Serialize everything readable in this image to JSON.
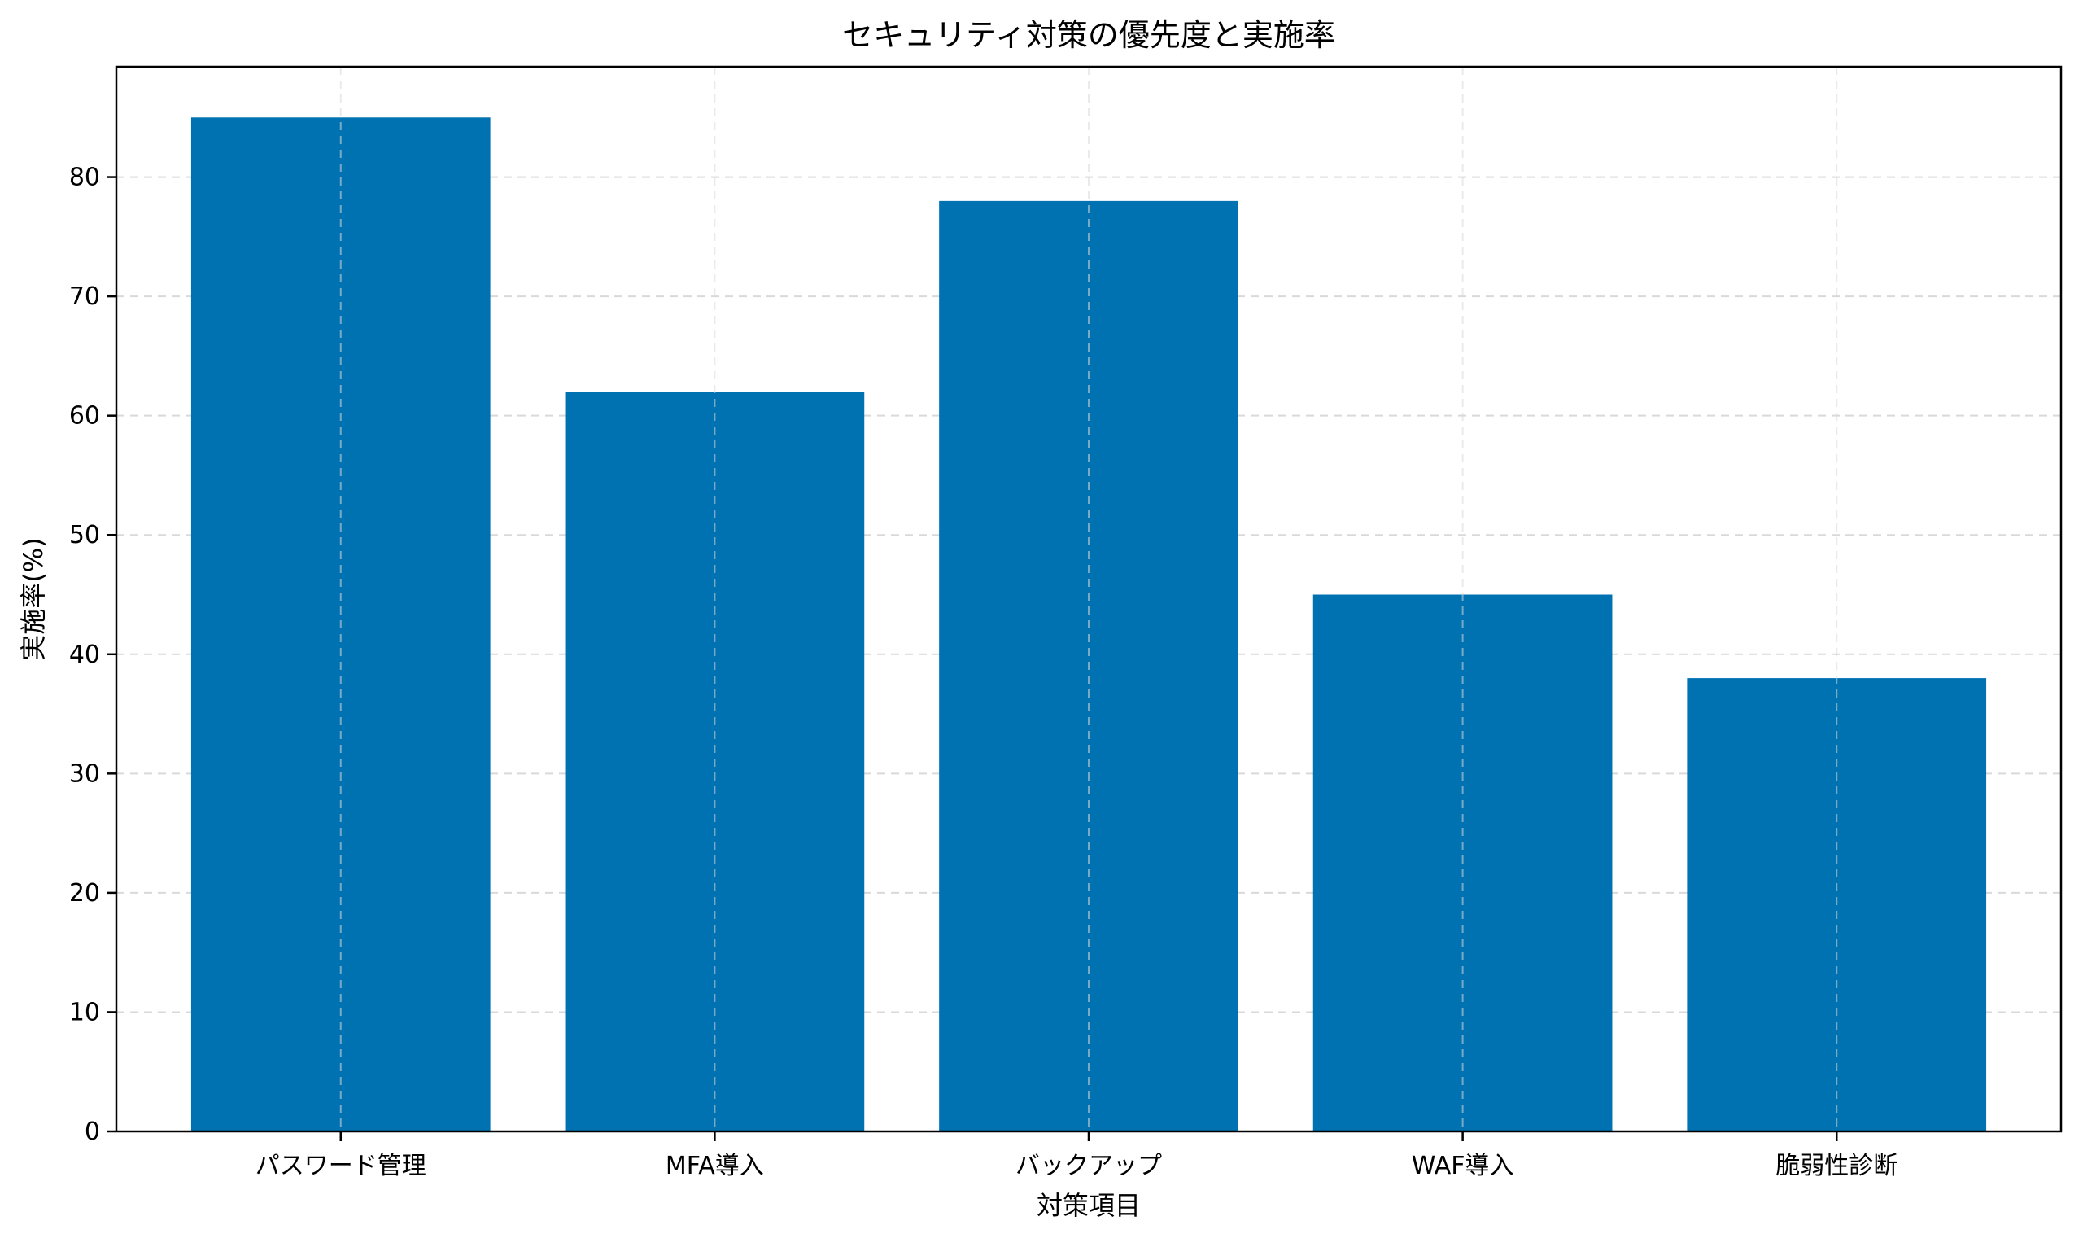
{
  "chart_data": {
    "type": "bar",
    "title": "セキュリティ対策の優先度と実施率",
    "xlabel": "対策項目",
    "ylabel": "実施率(%)",
    "categories": [
      "パスワード管理",
      "MFA導入",
      "バックアップ",
      "WAF導入",
      "脆弱性診断"
    ],
    "values": [
      85,
      62,
      78,
      45,
      38
    ],
    "ylim": [
      0,
      89.25
    ],
    "yticks": [
      0,
      10,
      20,
      30,
      40,
      50,
      60,
      70,
      80
    ],
    "grid": true,
    "bar_color": "#0072b2"
  }
}
